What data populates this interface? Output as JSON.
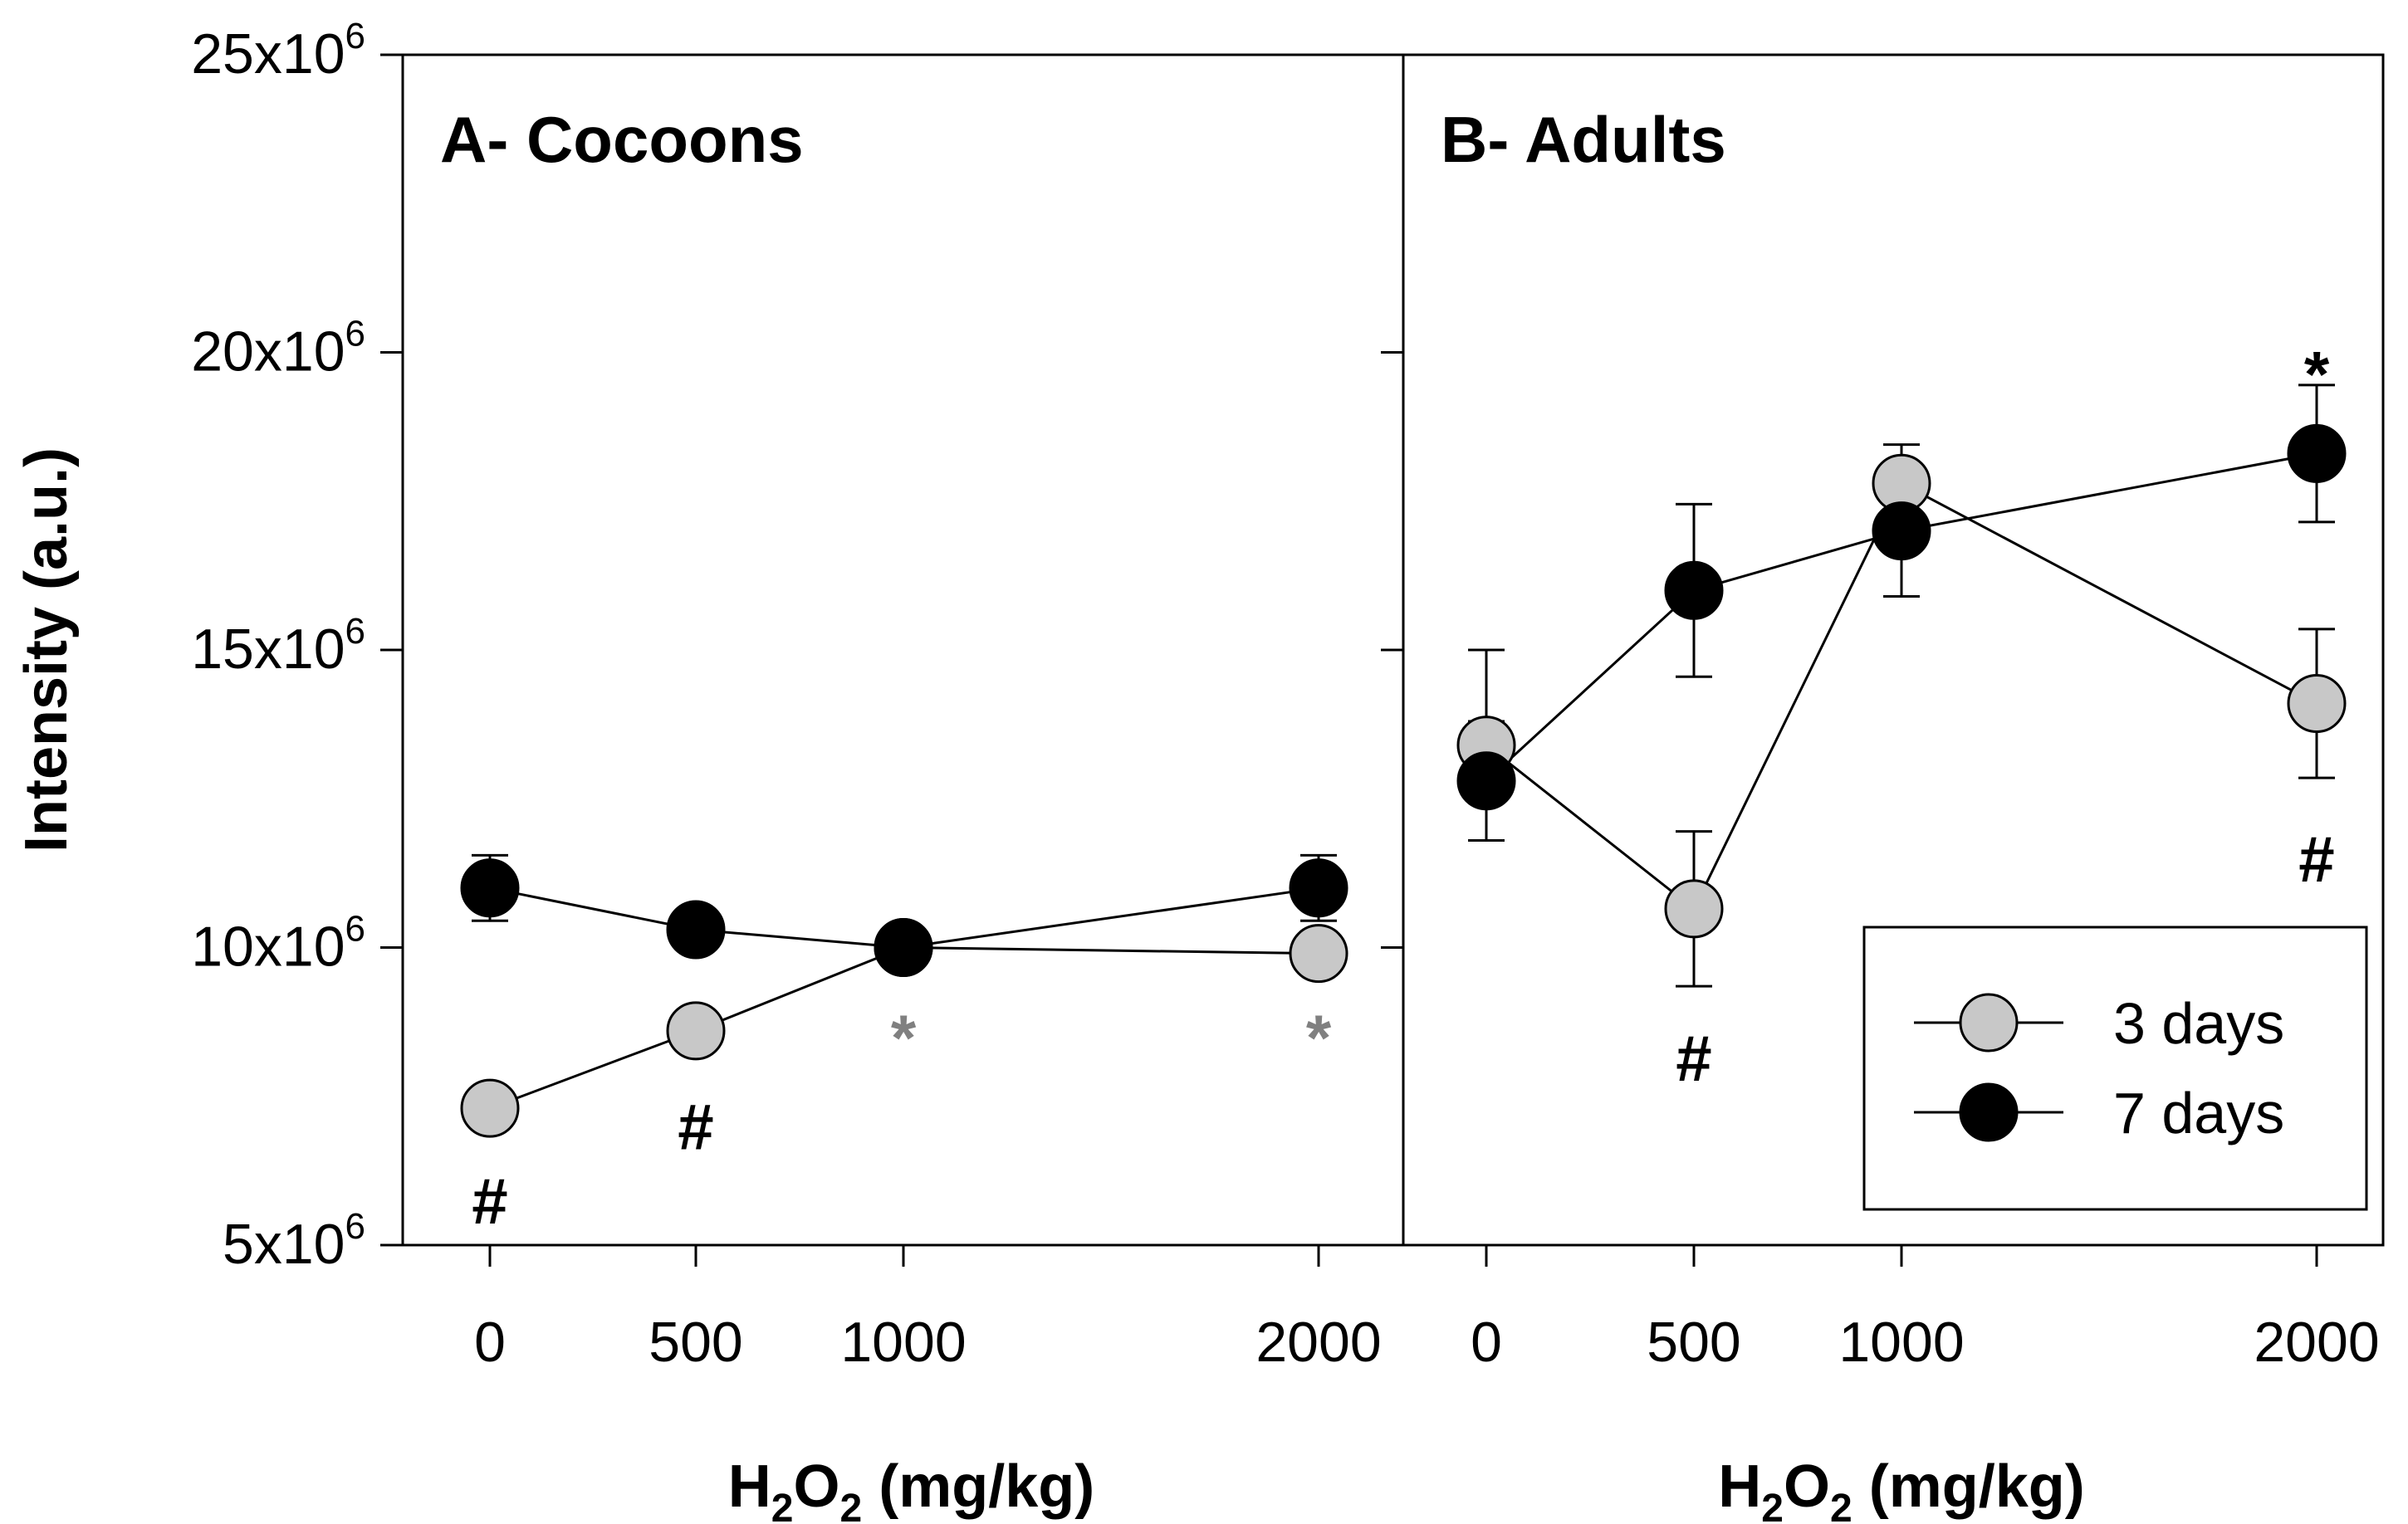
{
  "chart_data": {
    "type": "line",
    "ylabel": "Intensity (a.u.)",
    "ylim": [
      5000000,
      25000000
    ],
    "yticks": [
      {
        "value": 5000000,
        "base": "5x10",
        "exp": "6"
      },
      {
        "value": 10000000,
        "base": "10x10",
        "exp": "6"
      },
      {
        "value": 15000000,
        "base": "15x10",
        "exp": "6"
      },
      {
        "value": 20000000,
        "base": "20x10",
        "exp": "6"
      },
      {
        "value": 25000000,
        "base": "25x10",
        "exp": "6"
      }
    ],
    "xtick_labels": [
      "0",
      "500",
      "1000",
      "2000"
    ],
    "xlabel": {
      "prefix": "H",
      "sub1": "2",
      "mid": "O",
      "sub2": "2",
      "suffix": " (mg/kg)"
    },
    "legend": {
      "position": "bottom-right",
      "entries": [
        {
          "label": "3 days",
          "color": "#c8c8c8"
        },
        {
          "label": "7 days",
          "color": "#000000"
        }
      ]
    },
    "panels": [
      {
        "title": "A- Cocoons",
        "x": [
          0,
          500,
          1000,
          2000
        ],
        "series": [
          {
            "name": "3 days",
            "color": "#c8c8c8",
            "values": [
              7300000,
              8600000,
              10000000,
              9900000
            ],
            "errors": [
              0,
              0,
              0,
              200000
            ]
          },
          {
            "name": "7 days",
            "color": "#000000",
            "values": [
              11000000,
              10300000,
              10000000,
              11000000
            ],
            "errors": [
              550000,
              0,
              0,
              550000
            ]
          }
        ],
        "annotations": [
          {
            "text": "#",
            "x": 0,
            "y": 5750000,
            "color": "#000000"
          },
          {
            "text": "#",
            "x": 500,
            "y": 7000000,
            "color": "#000000"
          },
          {
            "text": "*",
            "x": 1000,
            "y": 8500000,
            "color": "#808080"
          },
          {
            "text": "*",
            "x": 2000,
            "y": 8500000,
            "color": "#808080"
          }
        ]
      },
      {
        "title": "B- Adults",
        "x": [
          0,
          500,
          1000,
          2000
        ],
        "series": [
          {
            "name": "3 days",
            "color": "#c8c8c8",
            "values": [
              13400000,
              10650000,
              17800000,
              14100000
            ],
            "errors": [
              1600000,
              1300000,
              650000,
              1250000
            ]
          },
          {
            "name": "7 days",
            "color": "#000000",
            "values": [
              12800000,
              16000000,
              17000000,
              18300000
            ],
            "errors": [
              1000000,
              1450000,
              1100000,
              1150000
            ]
          }
        ],
        "annotations": [
          {
            "text": "#",
            "x": 500,
            "y": 8150000,
            "color": "#000000"
          },
          {
            "text": "*",
            "x": 2000,
            "y": 19650000,
            "color": "#000000"
          },
          {
            "text": "#",
            "x": 2000,
            "y": 11500000,
            "color": "#000000"
          }
        ]
      }
    ]
  }
}
